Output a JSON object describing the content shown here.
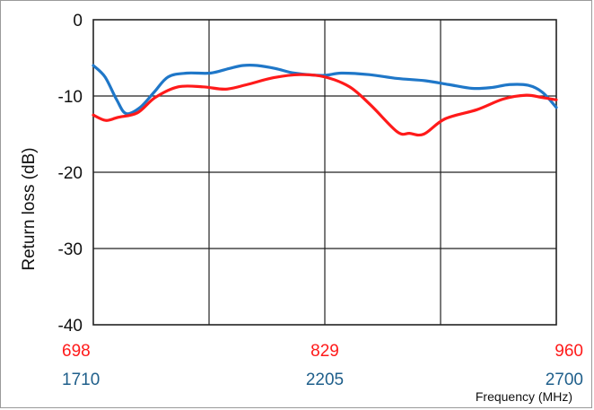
{
  "chart_data": {
    "type": "line",
    "xlabel": "Frequency (MHz)",
    "ylabel": "Return loss (dB)",
    "ylim": [
      -40,
      0
    ],
    "yticks": [
      "0",
      "-10",
      "-20",
      "-30",
      "-40"
    ],
    "grid": true,
    "x_axis_low_band": {
      "ticks": [
        "698",
        "829",
        "960"
      ],
      "values": [
        698,
        829,
        960
      ],
      "color": "#ff1a1a"
    },
    "x_axis_high_band": {
      "ticks": [
        "1710",
        "2205",
        "2700"
      ],
      "values": [
        1710,
        2205,
        2700
      ],
      "color": "#1f5f8b"
    },
    "series": [
      {
        "band": "high",
        "color": "#1f77c8",
        "x": [
          1710,
          1735,
          1760,
          1780,
          1810,
          1840,
          1870,
          1910,
          1960,
          2000,
          2030,
          2060,
          2100,
          2140,
          2200,
          2240,
          2300,
          2360,
          2420,
          2470,
          2520,
          2560,
          2600,
          2640,
          2670,
          2700
        ],
        "y": [
          -6.0,
          -7.5,
          -10.5,
          -12.3,
          -11.5,
          -9.5,
          -7.5,
          -7.0,
          -7.0,
          -6.4,
          -6.0,
          -6.0,
          -6.4,
          -7.0,
          -7.3,
          -7.0,
          -7.2,
          -7.7,
          -8.0,
          -8.5,
          -9.0,
          -8.9,
          -8.5,
          -8.6,
          -9.5,
          -11.5
        ]
      },
      {
        "band": "low",
        "color": "#ff1a1a",
        "x": [
          698,
          705,
          712,
          723,
          733,
          746,
          760,
          773,
          785,
          800,
          815,
          829,
          843,
          855,
          870,
          877,
          885,
          897,
          915,
          930,
          943,
          952,
          960
        ],
        "y": [
          -12.5,
          -13.2,
          -12.8,
          -12.2,
          -10.2,
          -8.8,
          -8.8,
          -9.1,
          -8.5,
          -7.6,
          -7.2,
          -7.5,
          -8.8,
          -11.2,
          -14.7,
          -14.9,
          -15.0,
          -13.0,
          -11.8,
          -10.4,
          -9.9,
          -10.2,
          -10.5
        ]
      }
    ]
  }
}
